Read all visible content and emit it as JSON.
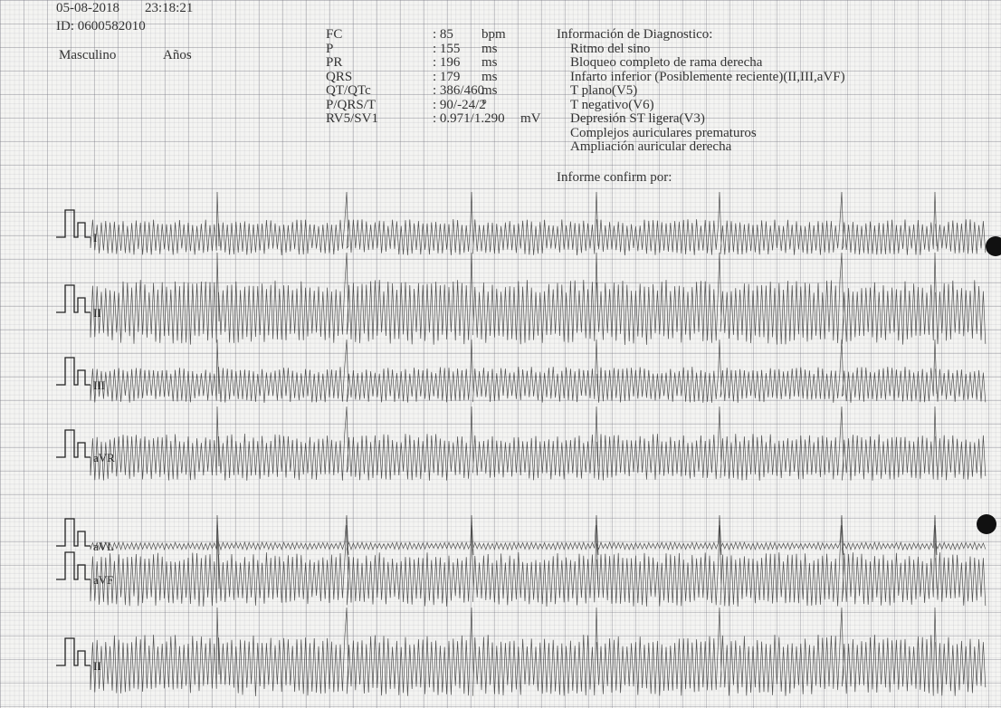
{
  "header": {
    "date": "05-08-2018",
    "time": "23:18:21",
    "id": "ID: 0600582010",
    "sex": "Masculino",
    "age_label": "Años"
  },
  "measurements": [
    {
      "label": "FC",
      "value": ": 85",
      "unit": "bpm"
    },
    {
      "label": "P",
      "value": ": 155",
      "unit": "ms"
    },
    {
      "label": "PR",
      "value": ": 196",
      "unit": "ms"
    },
    {
      "label": "QRS",
      "value": ": 179",
      "unit": "ms"
    },
    {
      "label": "QT/QTc",
      "value": ": 386/460",
      "unit": "ms"
    },
    {
      "label": "P/QRS/T",
      "value": ": 90/-24/2",
      "unit": "°"
    },
    {
      "label": "RV5/SV1",
      "value": ": 0.971/1.290",
      "unit": "mV"
    }
  ],
  "diagnosis": {
    "title": "Información de Diagnostico:",
    "items": [
      "Ritmo del sino",
      "Bloqueo completo de rama derecha",
      "Infarto inferior (Posiblemente reciente)(II,III,aVF)",
      "T plano(V5)",
      "T negativo(V6)",
      "Depresión ST ligera(V3)",
      "Complejos auriculares prematuros",
      "Ampliación auricular derecha"
    ],
    "confirmed_by": "Informe confirm por:"
  },
  "leads": [
    "I",
    "II",
    "III",
    "aVR",
    "aVL",
    "aVF",
    "II"
  ]
}
